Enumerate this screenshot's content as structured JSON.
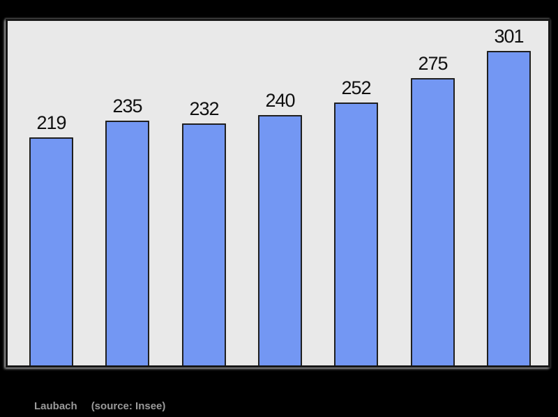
{
  "page": {
    "background_color": "#000000"
  },
  "caption": {
    "title": "Laubach",
    "source": "(source: Insee)",
    "color": "#9a9a9a"
  },
  "chart_data": {
    "type": "bar",
    "title": "",
    "xlabel": "",
    "ylabel": "",
    "values": [
      219,
      235,
      232,
      240,
      252,
      275,
      301
    ],
    "value_labels": [
      "219",
      "235",
      "232",
      "240",
      "252",
      "275",
      "301"
    ],
    "x_tick_labels_visible": false,
    "y_axis_visible": false,
    "grid": false,
    "legend": false,
    "ylim": [
      0,
      328
    ],
    "bar_fill_color": "#7397f3",
    "bar_border_color": "#1f1f1f",
    "plot_background_color": "#e9e9e9",
    "frame_border_color": "#171717",
    "value_label_color": "#101010"
  }
}
